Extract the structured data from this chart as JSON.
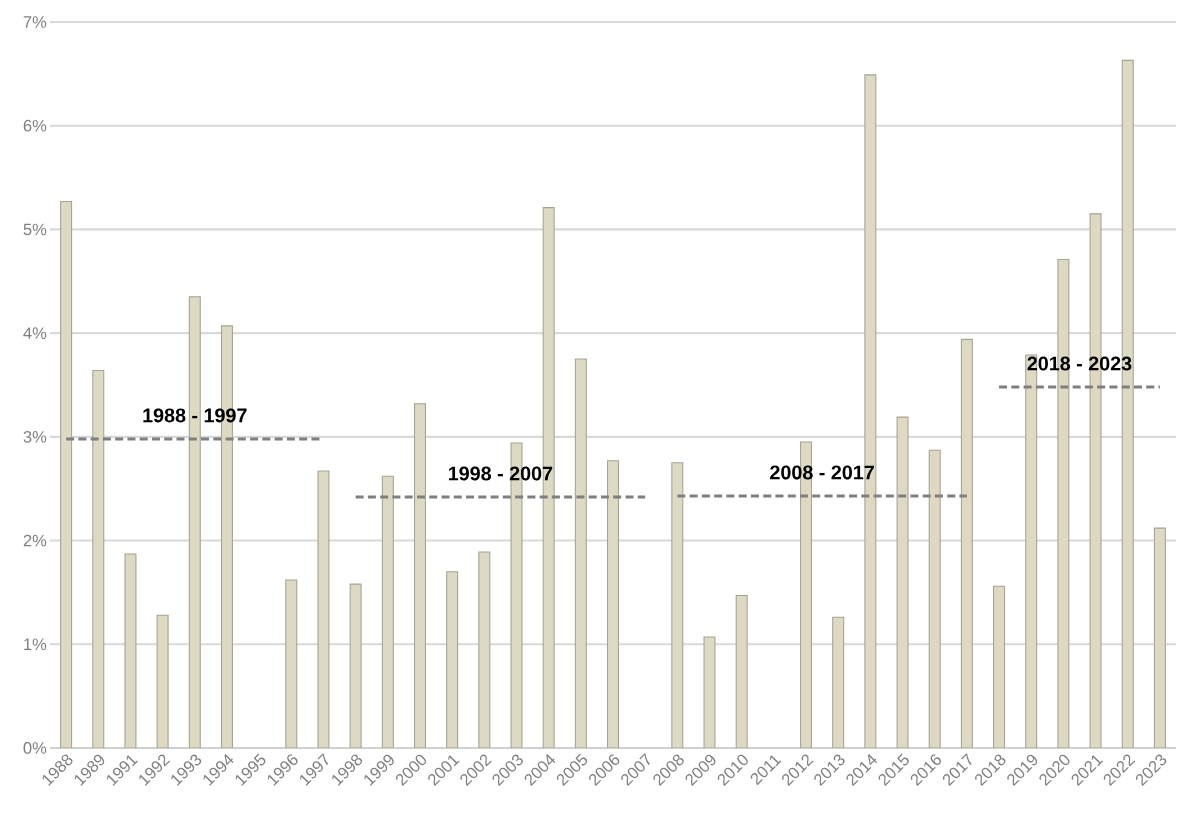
{
  "chart_data": {
    "type": "bar",
    "categories": [
      "1988",
      "1989",
      "1991",
      "1992",
      "1993",
      "1994",
      "1995",
      "1996",
      "1997",
      "1998",
      "1999",
      "2000",
      "2001",
      "2002",
      "2003",
      "2004",
      "2005",
      "2006",
      "2007",
      "2008",
      "2009",
      "2010",
      "2011",
      "2012",
      "2013",
      "2014",
      "2015",
      "2016",
      "2017",
      "2018",
      "2019",
      "2020",
      "2021",
      "2022",
      "2023"
    ],
    "ylim": [
      0,
      7
    ],
    "yticks": [
      {
        "value": 0,
        "label": "0%"
      },
      {
        "value": 1,
        "label": "1%"
      },
      {
        "value": 2,
        "label": "2%"
      },
      {
        "value": 3,
        "label": "3%"
      },
      {
        "value": 4,
        "label": "4%"
      },
      {
        "value": 5,
        "label": "5%"
      },
      {
        "value": 6,
        "label": "6%"
      },
      {
        "value": 7,
        "label": "7%"
      }
    ],
    "grid": "y",
    "series": [
      {
        "color": "#ddd9c3",
        "values": [
          5.27,
          3.64,
          1.87,
          1.28,
          4.35,
          4.07,
          null,
          1.62,
          2.67,
          1.58,
          2.62,
          3.32,
          1.7,
          1.89,
          2.94,
          5.21,
          3.75,
          2.77,
          null,
          2.75,
          1.07,
          1.47,
          null,
          2.95,
          1.26,
          6.49,
          3.19,
          2.87,
          3.94,
          1.56,
          3.79,
          4.71,
          5.15,
          6.63,
          2.12
        ]
      },
      {
        "type": "line",
        "name": "1988 - 1997",
        "color": "#7f7f7f",
        "line_style": "dashed",
        "values": [
          2.98,
          2.98,
          2.98,
          2.98,
          2.98,
          2.98,
          2.98,
          2.98,
          2.98,
          null,
          null,
          null,
          null,
          null,
          null,
          null,
          null,
          null,
          null,
          null,
          null,
          null,
          null,
          null,
          null,
          null,
          null,
          null,
          null,
          null,
          null,
          null,
          null,
          null,
          null
        ]
      },
      {
        "type": "line",
        "name": "1998 - 2007",
        "color": "#7f7f7f",
        "line_style": "dashed",
        "values": [
          null,
          null,
          null,
          null,
          null,
          null,
          null,
          null,
          null,
          2.42,
          2.42,
          2.42,
          2.42,
          2.42,
          2.42,
          2.42,
          2.42,
          2.42,
          2.42,
          null,
          null,
          null,
          null,
          null,
          null,
          null,
          null,
          null,
          null,
          null,
          null,
          null,
          null,
          null,
          null
        ]
      },
      {
        "type": "line",
        "name": "2008 - 2017",
        "color": "#7f7f7f",
        "line_style": "dashed",
        "values": [
          null,
          null,
          null,
          null,
          null,
          null,
          null,
          null,
          null,
          null,
          null,
          null,
          null,
          null,
          null,
          null,
          null,
          null,
          null,
          2.43,
          2.43,
          2.43,
          2.43,
          2.43,
          2.43,
          2.43,
          2.43,
          2.43,
          2.43,
          null,
          null,
          null,
          null,
          null,
          null
        ]
      },
      {
        "type": "line",
        "name": "2018 - 2023",
        "color": "#7f7f7f",
        "line_style": "dashed",
        "values": [
          null,
          null,
          null,
          null,
          null,
          null,
          null,
          null,
          null,
          null,
          null,
          null,
          null,
          null,
          null,
          null,
          null,
          null,
          null,
          null,
          null,
          null,
          null,
          null,
          null,
          null,
          null,
          null,
          null,
          3.48,
          3.48,
          3.48,
          3.48,
          3.48,
          3.48
        ]
      }
    ]
  }
}
